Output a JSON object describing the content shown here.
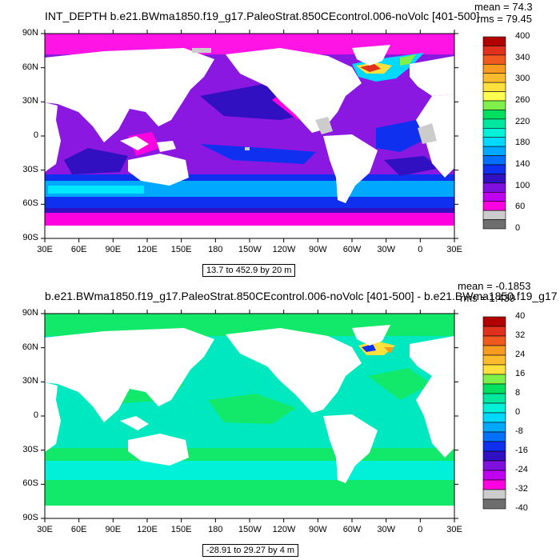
{
  "panels": [
    {
      "title": "INT_DEPTH b.e21.BWma1850.f19_g17.PaleoStrat.850CEcontrol.006-noVolc [401-500]",
      "mean": "mean = 74.3",
      "rms": "rms = 79.45",
      "range_label": "13.7 to 452.9 by 20 m",
      "colorbar": {
        "labels": [
          "400",
          "340",
          "300",
          "260",
          "220",
          "180",
          "140",
          "100",
          "60",
          "0"
        ],
        "colors": [
          "#b20000",
          "#e0301e",
          "#f05a1e",
          "#f79a22",
          "#fdbb2d",
          "#ffe03c",
          "#ffff50",
          "#7ff04a",
          "#00e060",
          "#00e8a0",
          "#00f0d8",
          "#00d8ff",
          "#00a8ff",
          "#0070ff",
          "#1030f0",
          "#3010c0",
          "#8010e0",
          "#c000f0",
          "#ff00e0",
          "#cccccc",
          "#6e6e6e"
        ]
      }
    },
    {
      "title": "b.e21.BWma1850.f19_g17.PaleoStrat.850CEcontrol.006-noVolc [401-500] - b.e21.BWma1850.f19_g17.",
      "mean": "mean = -0.1853",
      "rms": "rms = 1.439",
      "range_label": "-28.91 to 29.27 by 4 m",
      "colorbar": {
        "labels": [
          "40",
          "32",
          "24",
          "16",
          "8",
          "0",
          "-8",
          "-16",
          "-24",
          "-32",
          "-40"
        ],
        "colors": [
          "#b20000",
          "#e0301e",
          "#f05a1e",
          "#f79a22",
          "#fdbb2d",
          "#ffe03c",
          "#7ff04a",
          "#00e060",
          "#00e8a0",
          "#00f0d8",
          "#00d8ff",
          "#00a8ff",
          "#0070ff",
          "#1030f0",
          "#3010c0",
          "#8010e0",
          "#c000f0",
          "#ff00e0",
          "#cccccc",
          "#6e6e6e"
        ]
      }
    }
  ],
  "axes": {
    "lat_labels": [
      "90N",
      "60N",
      "30N",
      "0",
      "30S",
      "60S",
      "90S"
    ],
    "lon_labels": [
      "30E",
      "60E",
      "90E",
      "120E",
      "150E",
      "180",
      "150W",
      "120W",
      "90W",
      "60W",
      "30W",
      "0",
      "30E"
    ]
  }
}
